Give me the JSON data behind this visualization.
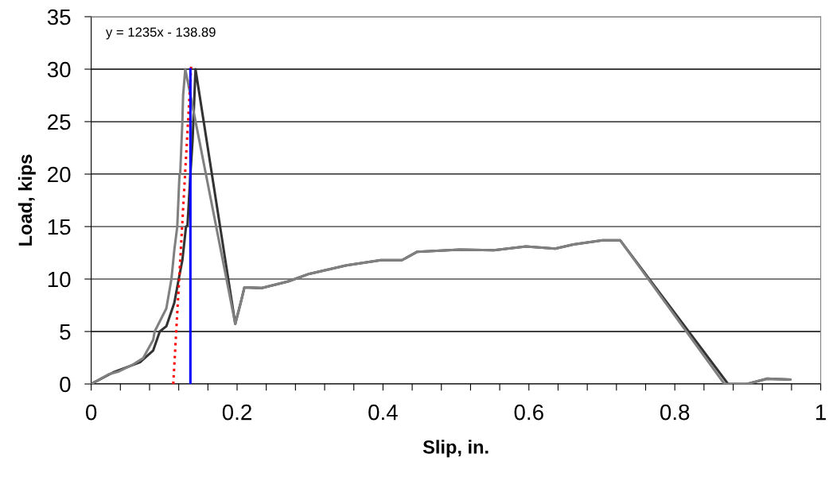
{
  "chart_data": {
    "type": "line",
    "xlabel": "Slip, in.",
    "ylabel": "Load, kips",
    "annotations": [
      "y = 1235x - 138.89"
    ],
    "series": [
      {
        "color": "#333333",
        "x": [
          0,
          0.03,
          0.067,
          0.085,
          0.094,
          0.103,
          0.114,
          0.12,
          0.125,
          0.13,
          0.132,
          0.136,
          0.139,
          0.143,
          0.1975,
          0.205,
          0.21,
          0.234,
          0.27,
          0.299,
          0.35,
          0.397,
          0.426,
          0.447,
          0.505,
          0.552,
          0.596,
          0.636,
          0.661,
          0.701,
          0.725,
          0.873,
          0.899,
          0.926,
          0.958
        ],
        "values": [
          0,
          1.1,
          2.07,
          3.2,
          5,
          5.5,
          7.75,
          10,
          11.8,
          15,
          15.1,
          20,
          23.2,
          30,
          5.73,
          7.75,
          9.2,
          9.14,
          9.77,
          10.5,
          11.3,
          11.8,
          11.8,
          12.6,
          12.8,
          12.75,
          13.1,
          12.9,
          13.3,
          13.7,
          13.7,
          0,
          0,
          0.5,
          0.42
        ]
      },
      {
        "color": "#808080",
        "x": [
          0,
          0.024,
          0.038,
          0.056,
          0.071,
          0.085,
          0.087,
          0.103,
          0.11,
          0.114,
          0.118,
          0.121,
          0.122,
          0.125,
          0.126,
          0.129,
          0.1975,
          0.205,
          0.21,
          0.234,
          0.27,
          0.299,
          0.35,
          0.397,
          0.426,
          0.447,
          0.505,
          0.552,
          0.596,
          0.636,
          0.661,
          0.701,
          0.725,
          0.868,
          0.899,
          0.926,
          0.958
        ],
        "values": [
          0,
          0.93,
          1.2,
          1.8,
          2.45,
          4.2,
          5,
          7.2,
          10,
          12.8,
          15,
          19.9,
          20,
          25,
          27.5,
          30,
          5.73,
          7.75,
          9.2,
          9.14,
          9.77,
          10.5,
          11.3,
          11.8,
          11.8,
          12.6,
          12.8,
          12.75,
          13.1,
          12.9,
          13.3,
          13.7,
          13.7,
          0,
          0,
          0.5,
          0.42
        ]
      },
      {
        "color": "#ff0000",
        "line_style": "dotted",
        "x": [
          0.1125,
          0.1372
        ],
        "values": [
          0,
          30.5
        ]
      },
      {
        "color": "#0000ff",
        "x": [
          0.136,
          0.136
        ],
        "values": [
          0,
          30
        ]
      }
    ],
    "xlim": [
      0,
      1
    ],
    "ylim": [
      0,
      35
    ],
    "xticks": [
      0,
      {
        "value": 0.04,
        "label": null
      },
      {
        "value": 0.08,
        "label": null
      },
      {
        "value": 0.12,
        "label": null
      },
      {
        "value": 0.16,
        "label": null
      },
      0.2,
      {
        "value": 0.24,
        "label": null
      },
      {
        "value": 0.28,
        "label": null
      },
      {
        "value": 0.32,
        "label": null
      },
      {
        "value": 0.36,
        "label": null
      },
      0.4,
      {
        "value": 0.44,
        "label": null
      },
      {
        "value": 0.48,
        "label": null
      },
      {
        "value": 0.52,
        "label": null
      },
      {
        "value": 0.56,
        "label": null
      },
      0.6,
      {
        "value": 0.64,
        "label": null
      },
      {
        "value": 0.68,
        "label": null
      },
      {
        "value": 0.72,
        "label": null
      },
      {
        "value": 0.76,
        "label": null
      },
      0.8,
      {
        "value": 0.84,
        "label": null
      },
      {
        "value": 0.88,
        "label": null
      },
      {
        "value": 0.92,
        "label": null
      },
      {
        "value": 0.96,
        "label": null
      },
      1
    ],
    "yticks": [
      0,
      5,
      10,
      15,
      20,
      25,
      30,
      35
    ],
    "grid": "y",
    "legend": false,
    "marker": "none",
    "line_style": "solid"
  }
}
